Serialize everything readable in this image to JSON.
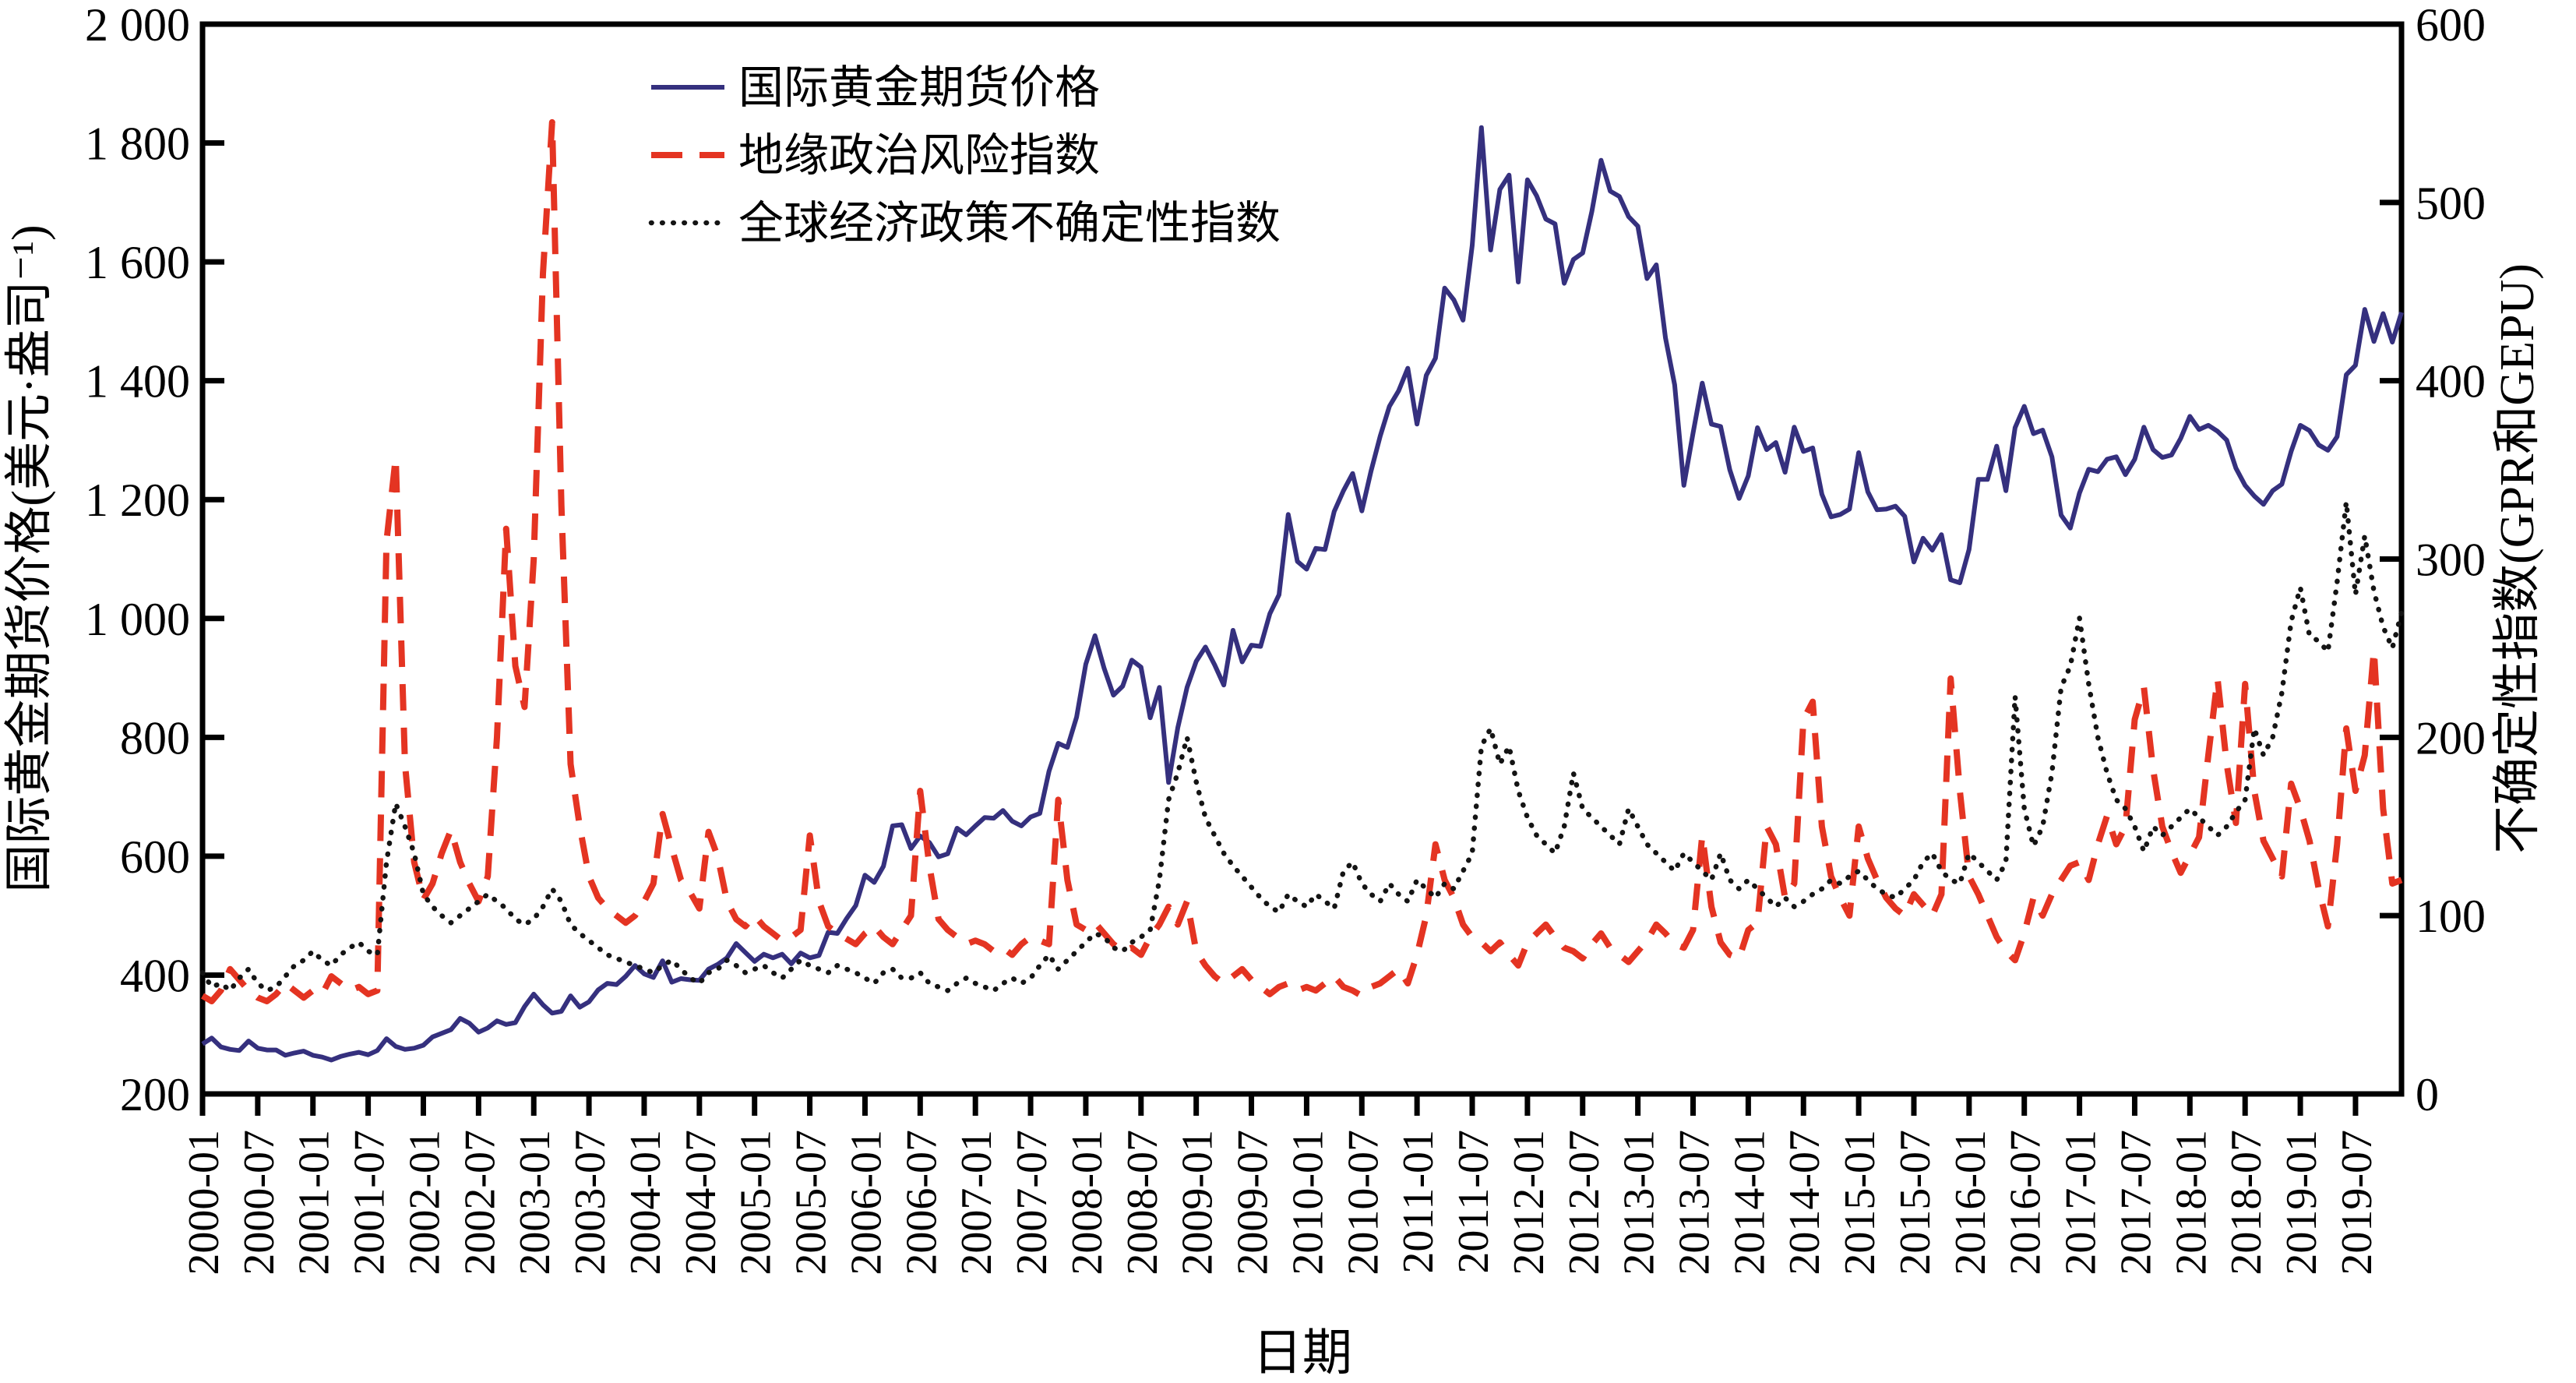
{
  "figure": {
    "x_axis_title": "日期",
    "y_left_title": "国际黄金期货价格(美元·盎司⁻¹)",
    "y_right_title": "不确定性指数(GPR和GEPU)"
  },
  "chart_data": {
    "type": "line",
    "title": "",
    "xlabel": "日期",
    "ylabel_left": "国际黄金期货价格(美元·盎司⁻¹)",
    "ylabel_right": "不确定性指数(GPR和GEPU)",
    "grid": false,
    "legend_position": "inside-top-left",
    "x_start": "2000-01",
    "x_end": "2019-12",
    "x_months": 240,
    "x_tick_step_months": 6,
    "x_tick_labels": [
      "2000-01",
      "2000-07",
      "2001-01",
      "2001-07",
      "2002-01",
      "2002-07",
      "2003-01",
      "2003-07",
      "2004-01",
      "2004-07",
      "2005-01",
      "2005-07",
      "2006-01",
      "2006-07",
      "2007-01",
      "2007-07",
      "2008-01",
      "2008-07",
      "2009-01",
      "2009-07",
      "2010-01",
      "2010-07",
      "2011-01",
      "2011-07",
      "2012-01",
      "2012-07",
      "2013-01",
      "2013-07",
      "2014-01",
      "2014-07",
      "2015-01",
      "2015-07",
      "2016-01",
      "2016-07",
      "2017-01",
      "2017-07",
      "2018-01",
      "2018-07",
      "2019-01",
      "2019-07"
    ],
    "y_left_range": [
      200,
      2000
    ],
    "y_left_ticks": [
      {
        "value": 2000,
        "label": "2 000"
      },
      {
        "value": 1800,
        "label": "1 800"
      },
      {
        "value": 1600,
        "label": "1 600"
      },
      {
        "value": 1400,
        "label": "1 400"
      },
      {
        "value": 1200,
        "label": "1 200"
      },
      {
        "value": 1000,
        "label": "1 000"
      },
      {
        "value": 800,
        "label": "800"
      },
      {
        "value": 600,
        "label": "600"
      },
      {
        "value": 400,
        "label": "400"
      },
      {
        "value": 200,
        "label": "200"
      }
    ],
    "y_right_range": [
      0,
      600
    ],
    "y_right_ticks": [
      {
        "value": 600,
        "label": "600"
      },
      {
        "value": 500,
        "label": "500"
      },
      {
        "value": 400,
        "label": "400"
      },
      {
        "value": 300,
        "label": "300"
      },
      {
        "value": 200,
        "label": "200"
      },
      {
        "value": 100,
        "label": "100"
      },
      {
        "value": 0,
        "label": "0"
      }
    ],
    "series": [
      {
        "name": "国际黄金期货价格",
        "axis": "left",
        "style": "solid",
        "color": "#35307e",
        "values": [
          284,
          294,
          279,
          275,
          273,
          289,
          277,
          274,
          274,
          265,
          269,
          272,
          265,
          262,
          257,
          263,
          267,
          270,
          266,
          273,
          293,
          280,
          275,
          277,
          282,
          296,
          302,
          308,
          327,
          319,
          304,
          311,
          323,
          317,
          320,
          347,
          368,
          350,
          336,
          339,
          365,
          346,
          355,
          375,
          386,
          384,
          398,
          416,
          402,
          396,
          424,
          388,
          394,
          392,
          391,
          410,
          418,
          429,
          453,
          438,
          423,
          435,
          429,
          435,
          419,
          437,
          429,
          433,
          472,
          470,
          495,
          517,
          568,
          556,
          583,
          651,
          653,
          613,
          634,
          623,
          599,
          604,
          647,
          636,
          651,
          665,
          664,
          677,
          659,
          651,
          666,
          672,
          743,
          790,
          783,
          834,
          923,
          971,
          916,
          871,
          886,
          930,
          918,
          833,
          884,
          724,
          816,
          884,
          928,
          952,
          922,
          888,
          980,
          927,
          955,
          953,
          1008,
          1040,
          1175,
          1096,
          1083,
          1118,
          1116,
          1180,
          1215,
          1244,
          1181,
          1248,
          1307,
          1357,
          1383,
          1421,
          1327,
          1409,
          1438,
          1556,
          1536,
          1502,
          1628,
          1826,
          1620,
          1722,
          1746,
          1566,
          1738,
          1711,
          1672,
          1664,
          1564,
          1604,
          1615,
          1685,
          1771,
          1719,
          1710,
          1676,
          1660,
          1572,
          1595,
          1472,
          1393,
          1224,
          1312,
          1396,
          1327,
          1323,
          1250,
          1202,
          1240,
          1321,
          1284,
          1296,
          1246,
          1322,
          1281,
          1287,
          1209,
          1171,
          1175,
          1184,
          1279,
          1213,
          1183,
          1184,
          1189,
          1172,
          1095,
          1135,
          1115,
          1141,
          1065,
          1060,
          1116,
          1234,
          1234,
          1290,
          1215,
          1321,
          1357,
          1311,
          1317,
          1272,
          1174,
          1152,
          1211,
          1251,
          1247,
          1268,
          1272,
          1242,
          1268,
          1322,
          1284,
          1271,
          1275,
          1303,
          1340,
          1318,
          1325,
          1315,
          1300,
          1253,
          1224,
          1206,
          1192,
          1215,
          1226,
          1281,
          1325,
          1316,
          1292,
          1283,
          1306,
          1410,
          1426,
          1520,
          1466,
          1513,
          1465,
          1515
        ]
      },
      {
        "name": "地缘政治风险指数",
        "axis": "right",
        "style": "dashed",
        "color": "#e43422",
        "values": [
          55,
          52,
          58,
          70,
          64,
          58,
          54,
          52,
          56,
          62,
          58,
          54,
          58,
          56,
          66,
          62,
          58,
          60,
          56,
          58,
          310,
          357,
          185,
          130,
          109,
          118,
          135,
          148,
          130,
          118,
          108,
          122,
          200,
          317,
          240,
          217,
          300,
          460,
          545,
          330,
          185,
          150,
          122,
          110,
          104,
          100,
          96,
          100,
          108,
          118,
          157,
          138,
          120,
          113,
          104,
          147,
          133,
          108,
          98,
          94,
          100,
          94,
          90,
          86,
          88,
          92,
          145,
          108,
          94,
          90,
          87,
          84,
          90,
          94,
          88,
          84,
          92,
          100,
          170,
          128,
          98,
          92,
          88,
          84,
          86,
          84,
          80,
          82,
          78,
          84,
          88,
          86,
          84,
          165,
          120,
          95,
          92,
          96,
          90,
          84,
          80,
          82,
          78,
          88,
          95,
          105,
          95,
          108,
          80,
          72,
          66,
          62,
          66,
          70,
          64,
          60,
          56,
          60,
          62,
          58,
          60,
          58,
          62,
          66,
          60,
          58,
          55,
          60,
          62,
          66,
          70,
          62,
          78,
          100,
          140,
          120,
          110,
          95,
          88,
          85,
          80,
          85,
          78,
          72,
          85,
          90,
          95,
          88,
          82,
          80,
          76,
          84,
          90,
          82,
          78,
          74,
          80,
          86,
          95,
          90,
          84,
          82,
          92,
          145,
          105,
          85,
          78,
          76,
          92,
          96,
          150,
          140,
          110,
          118,
          210,
          220,
          150,
          122,
          110,
          100,
          150,
          132,
          120,
          110,
          104,
          100,
          112,
          106,
          100,
          112,
          233,
          170,
          122,
          112,
          100,
          88,
          80,
          75,
          90,
          110,
          100,
          112,
          120,
          128,
          130,
          120,
          140,
          156,
          140,
          150,
          210,
          228,
          182,
          150,
          136,
          124,
          134,
          144,
          190,
          233,
          185,
          152,
          230,
          170,
          142,
          132,
          122,
          174,
          160,
          142,
          115,
          94,
          140,
          205,
          170,
          190,
          249,
          160,
          118,
          120
        ]
      },
      {
        "name": "全球经济政策不确定性指数",
        "axis": "right",
        "style": "dotted",
        "color": "#141414",
        "values": [
          68,
          60,
          62,
          58,
          65,
          70,
          62,
          58,
          60,
          66,
          72,
          75,
          80,
          75,
          72,
          78,
          82,
          85,
          80,
          78,
          130,
          163,
          150,
          135,
          112,
          105,
          100,
          96,
          100,
          104,
          108,
          112,
          108,
          104,
          98,
          95,
          98,
          105,
          115,
          108,
          95,
          90,
          86,
          82,
          78,
          76,
          74,
          72,
          70,
          68,
          72,
          75,
          70,
          65,
          62,
          68,
          70,
          75,
          72,
          68,
          70,
          72,
          68,
          65,
          70,
          75,
          72,
          70,
          68,
          72,
          70,
          68,
          65,
          62,
          68,
          70,
          65,
          65,
          68,
          62,
          60,
          58,
          62,
          65,
          62,
          60,
          58,
          62,
          65,
          62,
          65,
          72,
          78,
          70,
          75,
          80,
          85,
          90,
          88,
          82,
          80,
          85,
          88,
          92,
          120,
          165,
          180,
          200,
          175,
          155,
          145,
          135,
          128,
          122,
          116,
          110,
          105,
          102,
          112,
          108,
          105,
          112,
          108,
          104,
          125,
          130,
          118,
          112,
          108,
          118,
          112,
          108,
          120,
          115,
          110,
          118,
          115,
          125,
          135,
          195,
          205,
          185,
          195,
          170,
          155,
          145,
          140,
          135,
          150,
          180,
          160,
          155,
          150,
          145,
          140,
          160,
          150,
          140,
          135,
          130,
          125,
          135,
          130,
          125,
          120,
          135,
          120,
          115,
          120,
          115,
          110,
          105,
          110,
          105,
          108,
          112,
          115,
          120,
          118,
          122,
          125,
          120,
          115,
          112,
          110,
          115,
          120,
          130,
          135,
          125,
          120,
          118,
          135,
          130,
          125,
          120,
          130,
          223,
          160,
          139,
          150,
          180,
          228,
          240,
          267,
          230,
          200,
          180,
          165,
          160,
          150,
          136,
          150,
          145,
          150,
          155,
          160,
          155,
          150,
          145,
          150,
          158,
          165,
          205,
          190,
          200,
          225,
          265,
          284,
          257,
          254,
          248,
          287,
          332,
          280,
          313,
          282,
          262,
          250,
          270
        ]
      }
    ]
  }
}
